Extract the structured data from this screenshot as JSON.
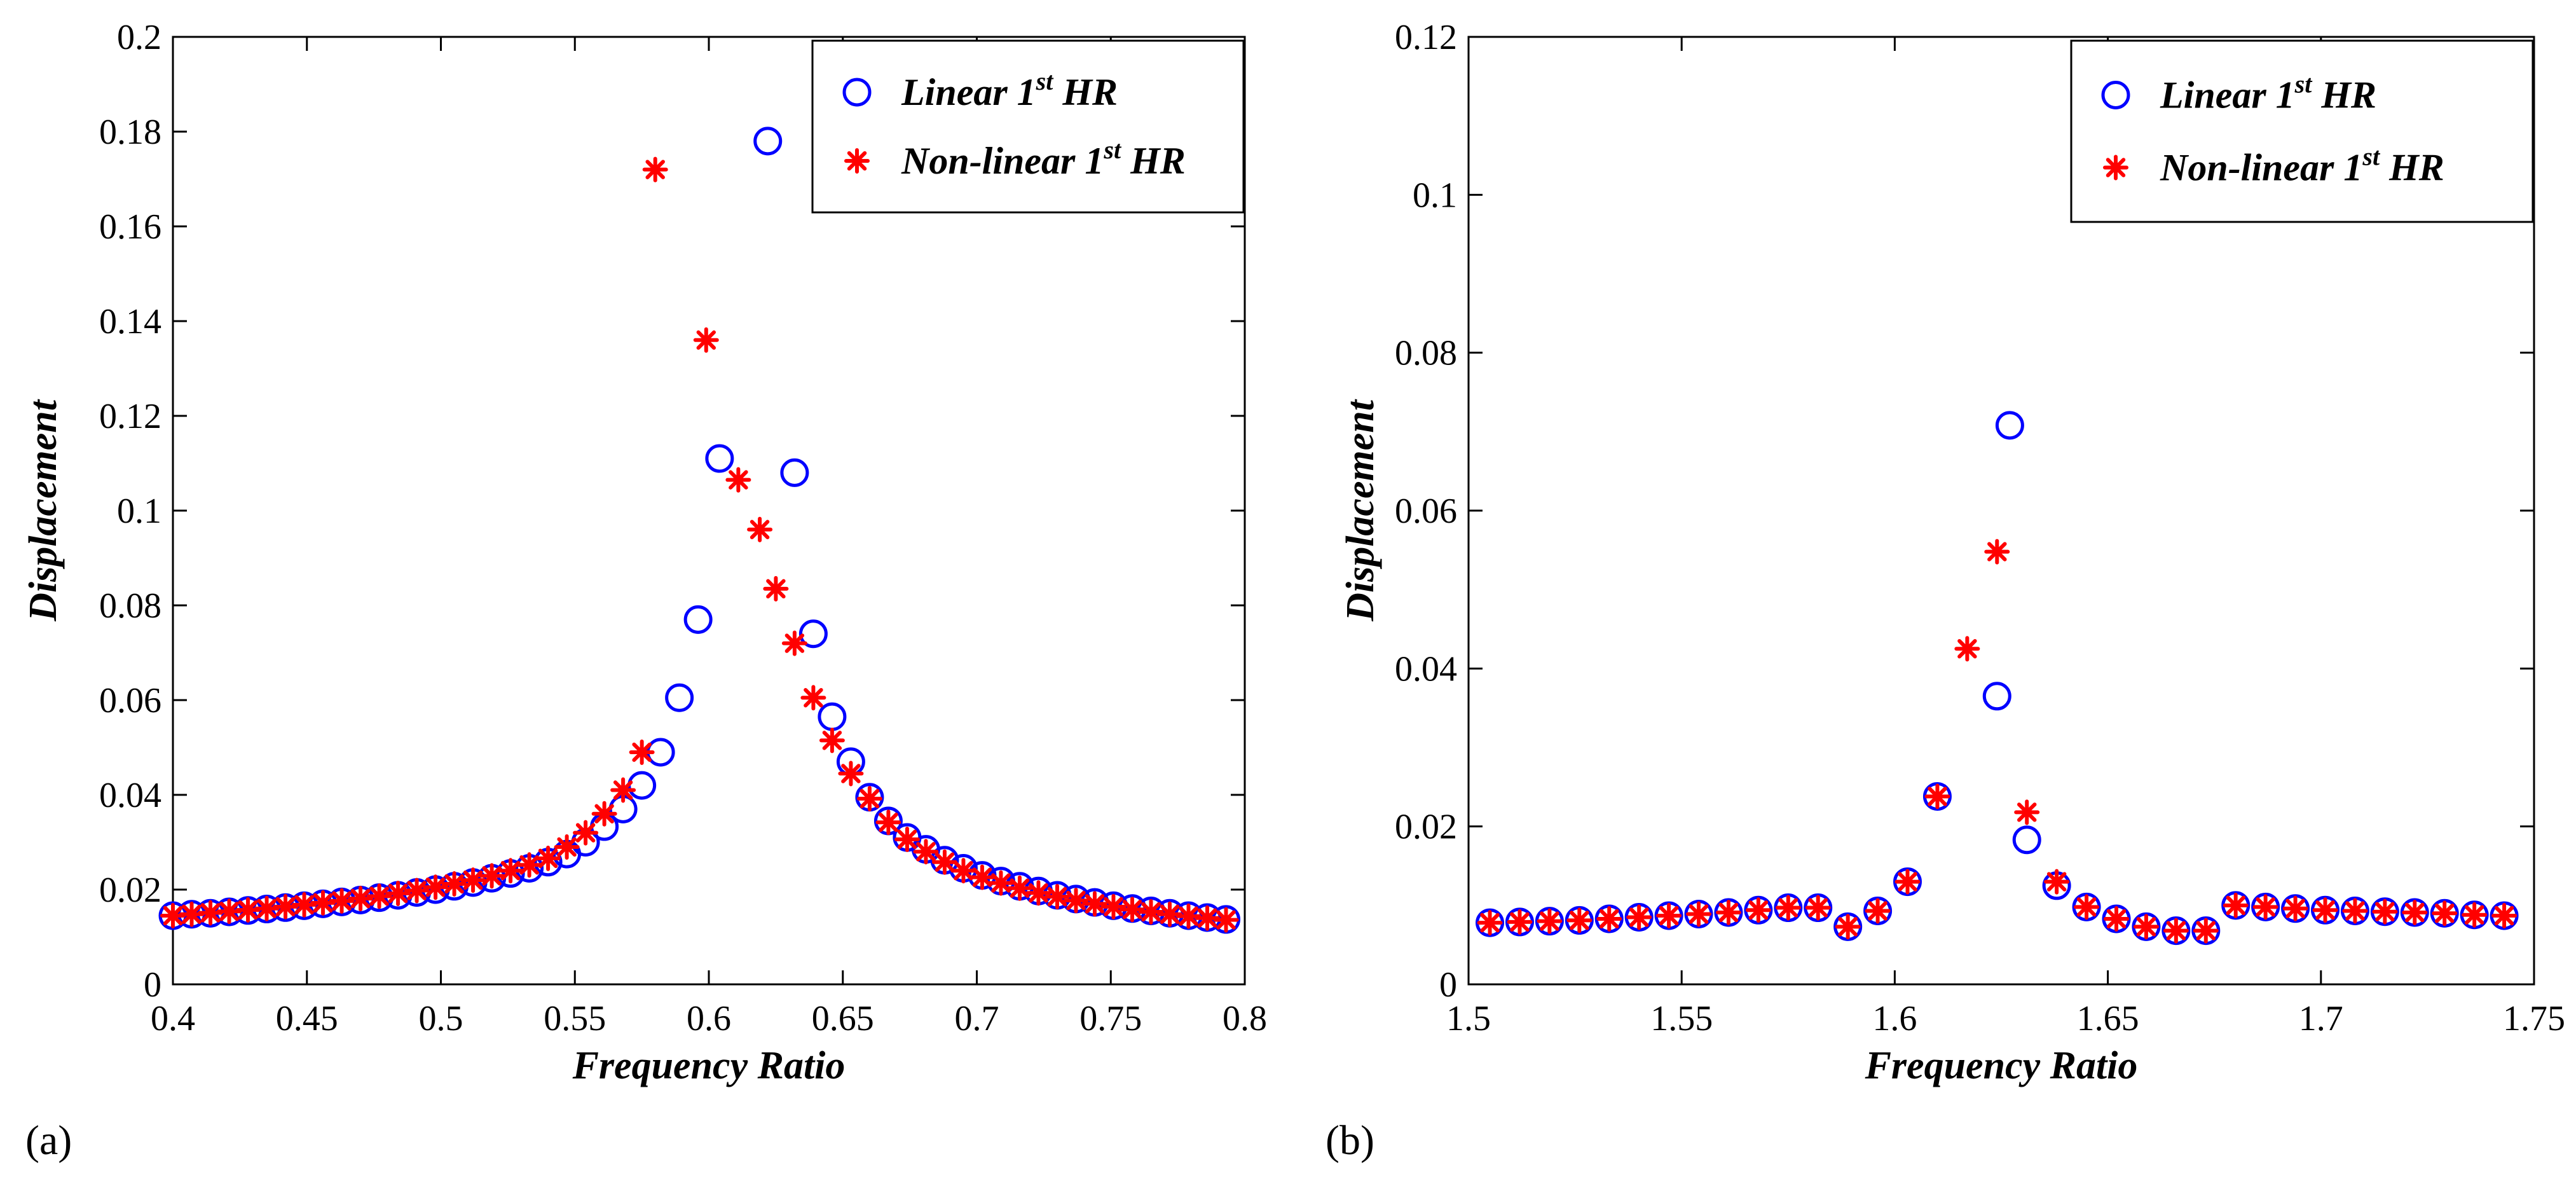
{
  "colors": {
    "linear": "#0000ff",
    "nonlinear": "#ff0000",
    "axis": "#000000",
    "background": "#ffffff"
  },
  "chart_data": [
    {
      "type": "scatter",
      "panel_label": "(a)",
      "xlabel": "Frequency Ratio",
      "ylabel": "Displacement",
      "xlim": [
        0.4,
        0.8
      ],
      "ylim": [
        0,
        0.2
      ],
      "xticks": [
        0.4,
        0.45,
        0.5,
        0.55,
        0.6,
        0.65,
        0.7,
        0.75,
        0.8
      ],
      "xtick_labels": [
        "0.4",
        "0.45",
        "0.5",
        "0.55",
        "0.6",
        "0.65",
        "0.7",
        "0.75",
        "0.8"
      ],
      "yticks": [
        0,
        0.02,
        0.04,
        0.06,
        0.08,
        0.1,
        0.12,
        0.14,
        0.16,
        0.18,
        0.2
      ],
      "ytick_labels": [
        "0",
        "0.02",
        "0.04",
        "0.06",
        "0.08",
        "0.1",
        "0.12",
        "0.14",
        "0.16",
        "0.18",
        "0.2"
      ],
      "grid": false,
      "legend_position": "top-right",
      "series": [
        {
          "name": "Linear 1st HR",
          "legend_main": "Linear 1",
          "legend_sup": "st",
          "legend_tail": " HR",
          "marker": "circle",
          "color": "#0000ff",
          "points": [
            [
              0.4,
              0.0145
            ],
            [
              0.407,
              0.0148
            ],
            [
              0.414,
              0.015
            ],
            [
              0.421,
              0.0153
            ],
            [
              0.428,
              0.0156
            ],
            [
              0.435,
              0.0159
            ],
            [
              0.442,
              0.0162
            ],
            [
              0.449,
              0.0166
            ],
            [
              0.456,
              0.017
            ],
            [
              0.463,
              0.0174
            ],
            [
              0.47,
              0.0178
            ],
            [
              0.477,
              0.0183
            ],
            [
              0.484,
              0.0188
            ],
            [
              0.491,
              0.0194
            ],
            [
              0.498,
              0.02
            ],
            [
              0.505,
              0.0207
            ],
            [
              0.512,
              0.0215
            ],
            [
              0.519,
              0.0224
            ],
            [
              0.526,
              0.0234
            ],
            [
              0.533,
              0.0245
            ],
            [
              0.54,
              0.0258
            ],
            [
              0.547,
              0.0275
            ],
            [
              0.554,
              0.03
            ],
            [
              0.561,
              0.0333
            ],
            [
              0.568,
              0.037
            ],
            [
              0.575,
              0.042
            ],
            [
              0.582,
              0.049
            ],
            [
              0.589,
              0.0605
            ],
            [
              0.596,
              0.077
            ],
            [
              0.604,
              0.111
            ],
            [
              0.622,
              0.178
            ],
            [
              0.632,
              0.108
            ],
            [
              0.639,
              0.074
            ],
            [
              0.646,
              0.0565
            ],
            [
              0.653,
              0.047
            ],
            [
              0.66,
              0.0395
            ],
            [
              0.667,
              0.0345
            ],
            [
              0.674,
              0.031
            ],
            [
              0.681,
              0.0285
            ],
            [
              0.688,
              0.0262
            ],
            [
              0.695,
              0.0245
            ],
            [
              0.702,
              0.023
            ],
            [
              0.709,
              0.0218
            ],
            [
              0.716,
              0.0207
            ],
            [
              0.723,
              0.0197
            ],
            [
              0.73,
              0.0188
            ],
            [
              0.737,
              0.018
            ],
            [
              0.744,
              0.0173
            ],
            [
              0.751,
              0.0166
            ],
            [
              0.758,
              0.016
            ],
            [
              0.765,
              0.0155
            ],
            [
              0.772,
              0.015
            ],
            [
              0.779,
              0.0145
            ],
            [
              0.786,
              0.0141
            ],
            [
              0.793,
              0.0137
            ]
          ]
        },
        {
          "name": "Non-linear 1st HR",
          "legend_main": "Non-linear 1",
          "legend_sup": "st",
          "legend_tail": " HR",
          "marker": "asterisk",
          "color": "#ff0000",
          "points": [
            [
              0.4,
              0.0145
            ],
            [
              0.407,
              0.0148
            ],
            [
              0.414,
              0.0151
            ],
            [
              0.421,
              0.0154
            ],
            [
              0.428,
              0.0157
            ],
            [
              0.435,
              0.016
            ],
            [
              0.442,
              0.0164
            ],
            [
              0.449,
              0.0168
            ],
            [
              0.456,
              0.0172
            ],
            [
              0.463,
              0.0176
            ],
            [
              0.47,
              0.0181
            ],
            [
              0.477,
              0.0186
            ],
            [
              0.484,
              0.0192
            ],
            [
              0.491,
              0.0198
            ],
            [
              0.498,
              0.0205
            ],
            [
              0.505,
              0.0212
            ],
            [
              0.512,
              0.022
            ],
            [
              0.519,
              0.0229
            ],
            [
              0.526,
              0.024
            ],
            [
              0.533,
              0.0252
            ],
            [
              0.54,
              0.0266
            ],
            [
              0.547,
              0.029
            ],
            [
              0.554,
              0.032
            ],
            [
              0.561,
              0.036
            ],
            [
              0.568,
              0.041
            ],
            [
              0.575,
              0.049
            ],
            [
              0.58,
              0.172
            ],
            [
              0.599,
              0.136
            ],
            [
              0.611,
              0.1065
            ],
            [
              0.619,
              0.096
            ],
            [
              0.625,
              0.0835
            ],
            [
              0.632,
              0.072
            ],
            [
              0.639,
              0.0605
            ],
            [
              0.646,
              0.0515
            ],
            [
              0.653,
              0.0445
            ],
            [
              0.66,
              0.0392
            ],
            [
              0.667,
              0.0342
            ],
            [
              0.674,
              0.0306
            ],
            [
              0.681,
              0.028
            ],
            [
              0.688,
              0.0258
            ],
            [
              0.695,
              0.024
            ],
            [
              0.702,
              0.0226
            ],
            [
              0.709,
              0.0214
            ],
            [
              0.716,
              0.0203
            ],
            [
              0.723,
              0.0193
            ],
            [
              0.73,
              0.0185
            ],
            [
              0.737,
              0.0177
            ],
            [
              0.744,
              0.017
            ],
            [
              0.751,
              0.0164
            ],
            [
              0.758,
              0.0158
            ],
            [
              0.765,
              0.0153
            ],
            [
              0.772,
              0.0148
            ],
            [
              0.779,
              0.0144
            ],
            [
              0.786,
              0.014
            ],
            [
              0.793,
              0.0136
            ]
          ]
        }
      ]
    },
    {
      "type": "scatter",
      "panel_label": "(b)",
      "xlabel": "Frequency Ratio",
      "ylabel": "Displacement",
      "xlim": [
        1.5,
        1.75
      ],
      "ylim": [
        0,
        0.12
      ],
      "xticks": [
        1.5,
        1.55,
        1.6,
        1.65,
        1.7,
        1.75
      ],
      "xtick_labels": [
        "1.5",
        "1.55",
        "1.6",
        "1.65",
        "1.7",
        "1.75"
      ],
      "yticks": [
        0,
        0.02,
        0.04,
        0.06,
        0.08,
        0.1,
        0.12
      ],
      "ytick_labels": [
        "0",
        "0.02",
        "0.04",
        "0.06",
        "0.08",
        "0.1",
        "0.12"
      ],
      "grid": false,
      "legend_position": "top-right",
      "series": [
        {
          "name": "Linear 1st HR",
          "legend_main": "Linear 1",
          "legend_sup": "st",
          "legend_tail": " HR",
          "marker": "circle",
          "color": "#0000ff",
          "points": [
            [
              1.505,
              0.0078
            ],
            [
              1.512,
              0.0079
            ],
            [
              1.519,
              0.008
            ],
            [
              1.526,
              0.0081
            ],
            [
              1.533,
              0.0083
            ],
            [
              1.54,
              0.0085
            ],
            [
              1.547,
              0.0087
            ],
            [
              1.554,
              0.0089
            ],
            [
              1.561,
              0.0091
            ],
            [
              1.568,
              0.0094
            ],
            [
              1.575,
              0.0097
            ],
            [
              1.582,
              0.0097
            ],
            [
              1.589,
              0.0073
            ],
            [
              1.596,
              0.0093
            ],
            [
              1.603,
              0.013
            ],
            [
              1.61,
              0.0238
            ],
            [
              1.624,
              0.0365
            ],
            [
              1.627,
              0.0708
            ],
            [
              1.631,
              0.0183
            ],
            [
              1.638,
              0.0125
            ],
            [
              1.645,
              0.0098
            ],
            [
              1.652,
              0.0083
            ],
            [
              1.659,
              0.0073
            ],
            [
              1.666,
              0.0068
            ],
            [
              1.673,
              0.0068
            ],
            [
              1.68,
              0.01
            ],
            [
              1.687,
              0.0098
            ],
            [
              1.694,
              0.0096
            ],
            [
              1.701,
              0.0094
            ],
            [
              1.708,
              0.0093
            ],
            [
              1.715,
              0.0092
            ],
            [
              1.722,
              0.0091
            ],
            [
              1.729,
              0.009
            ],
            [
              1.736,
              0.0088
            ],
            [
              1.743,
              0.0087
            ]
          ]
        },
        {
          "name": "Non-linear 1st HR",
          "legend_main": "Non-linear 1",
          "legend_sup": "st",
          "legend_tail": " HR",
          "marker": "asterisk",
          "color": "#ff0000",
          "points": [
            [
              1.505,
              0.0078
            ],
            [
              1.512,
              0.0079
            ],
            [
              1.519,
              0.008
            ],
            [
              1.526,
              0.0081
            ],
            [
              1.533,
              0.0083
            ],
            [
              1.54,
              0.0085
            ],
            [
              1.547,
              0.0087
            ],
            [
              1.554,
              0.0089
            ],
            [
              1.561,
              0.0091
            ],
            [
              1.568,
              0.0094
            ],
            [
              1.575,
              0.0097
            ],
            [
              1.582,
              0.0097
            ],
            [
              1.589,
              0.0073
            ],
            [
              1.596,
              0.0093
            ],
            [
              1.603,
              0.013
            ],
            [
              1.61,
              0.0238
            ],
            [
              1.617,
              0.0425
            ],
            [
              1.624,
              0.0548
            ],
            [
              1.631,
              0.0218
            ],
            [
              1.638,
              0.013
            ],
            [
              1.645,
              0.0098
            ],
            [
              1.652,
              0.0083
            ],
            [
              1.659,
              0.0073
            ],
            [
              1.666,
              0.0068
            ],
            [
              1.673,
              0.0068
            ],
            [
              1.68,
              0.01
            ],
            [
              1.687,
              0.0098
            ],
            [
              1.694,
              0.0096
            ],
            [
              1.701,
              0.0094
            ],
            [
              1.708,
              0.0093
            ],
            [
              1.715,
              0.0092
            ],
            [
              1.722,
              0.0091
            ],
            [
              1.729,
              0.009
            ],
            [
              1.736,
              0.0088
            ],
            [
              1.743,
              0.0087
            ]
          ]
        }
      ]
    }
  ]
}
